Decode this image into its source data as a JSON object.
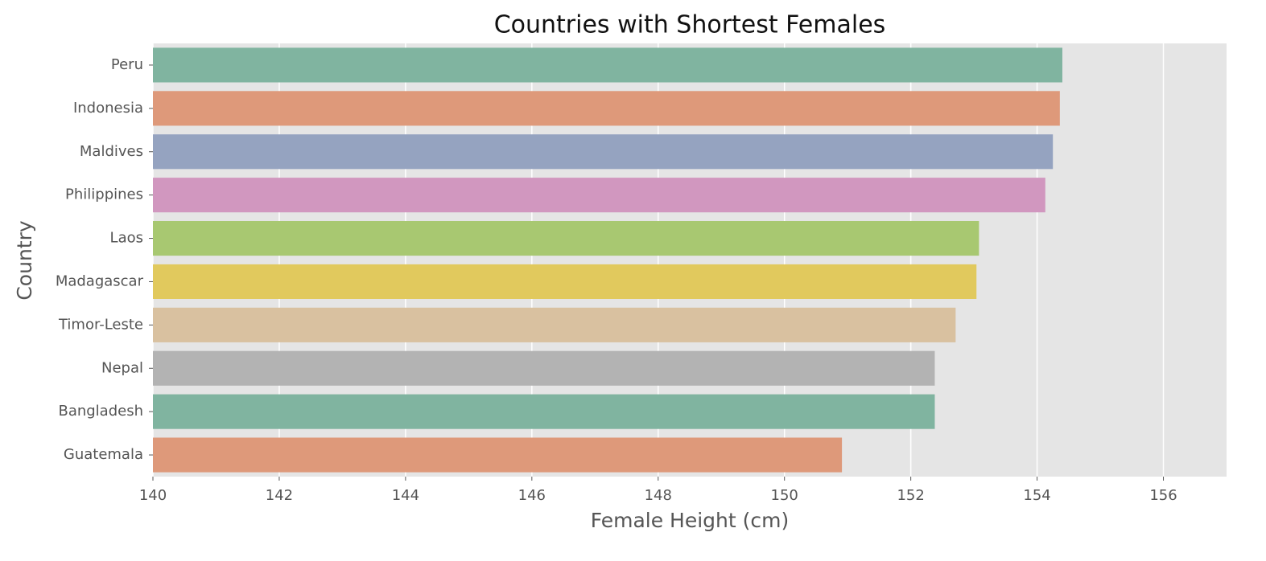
{
  "chart_data": {
    "type": "barh",
    "title": "Countries with Shortest Females",
    "x_label": "Female Height (cm)",
    "y_label": "Country",
    "categories": [
      "Peru",
      "Indonesia",
      "Maldives",
      "Philippines",
      "Laos",
      "Madagascar",
      "Timor-Leste",
      "Nepal",
      "Bangladesh",
      "Guatemala"
    ],
    "values": [
      154.4,
      154.36,
      154.25,
      154.13,
      153.08,
      153.04,
      152.71,
      152.38,
      152.38,
      150.91
    ],
    "colors": [
      "#80b4a0",
      "#de997a",
      "#95a3c0",
      "#d197bf",
      "#a8c871",
      "#e1c95d",
      "#d9c1a0",
      "#b3b3b3",
      "#80b4a0",
      "#de997a"
    ],
    "xlim": [
      140,
      157
    ],
    "xticks": [
      140,
      142,
      144,
      146,
      148,
      150,
      152,
      154,
      156
    ],
    "grid": true
  }
}
